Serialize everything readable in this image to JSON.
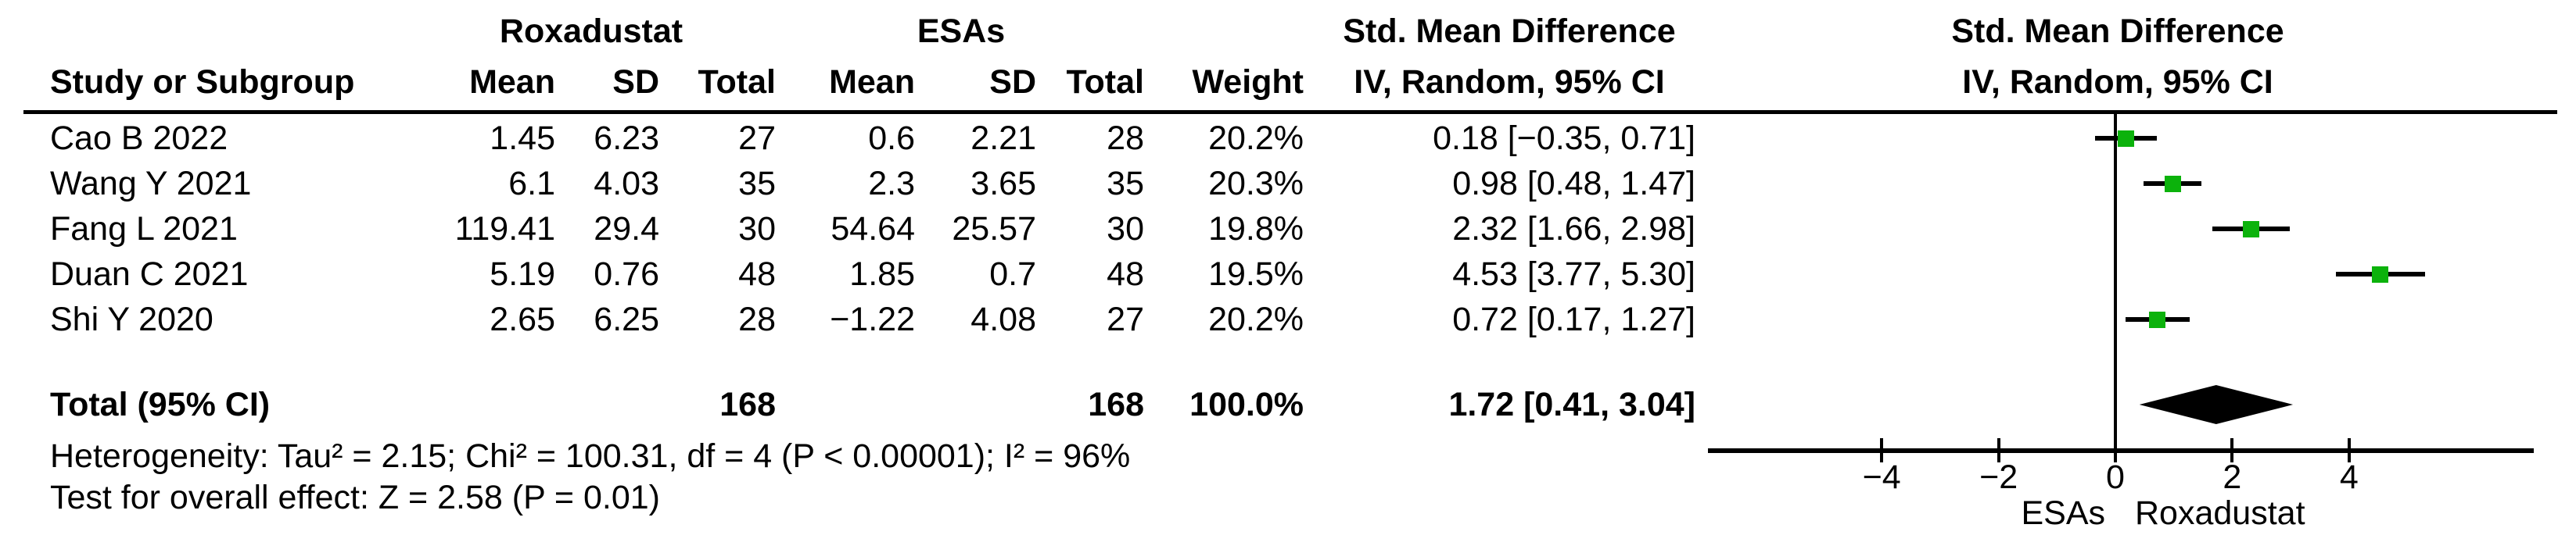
{
  "header": {
    "study_col": "Study or Subgroup",
    "group1": "Roxadustat",
    "group2": "ESAs",
    "mean1": "Mean",
    "sd1": "SD",
    "total1": "Total",
    "mean2": "Mean",
    "sd2": "SD",
    "total2": "Total",
    "weight": "Weight",
    "effect_title": "Std. Mean Difference",
    "effect_method": "IV, Random, 95% CI",
    "plot_title": "Std. Mean Difference",
    "plot_method": "IV, Random, 95% CI"
  },
  "rows": [
    {
      "study": "Cao B 2022",
      "m1": "1.45",
      "sd1": "6.23",
      "n1": "27",
      "m2": "0.6",
      "sd2": "2.21",
      "n2": "28",
      "weight": "20.2%",
      "ci": "0.18 [−0.35, 0.71]"
    },
    {
      "study": "Wang Y 2021",
      "m1": "6.1",
      "sd1": "4.03",
      "n1": "35",
      "m2": "2.3",
      "sd2": "3.65",
      "n2": "35",
      "weight": "20.3%",
      "ci": "0.98 [0.48, 1.47]"
    },
    {
      "study": "Fang L 2021",
      "m1": "119.41",
      "sd1": "29.4",
      "n1": "30",
      "m2": "54.64",
      "sd2": "25.57",
      "n2": "30",
      "weight": "19.8%",
      "ci": "2.32 [1.66, 2.98]"
    },
    {
      "study": "Duan C 2021",
      "m1": "5.19",
      "sd1": "0.76",
      "n1": "48",
      "m2": "1.85",
      "sd2": "0.7",
      "n2": "48",
      "weight": "19.5%",
      "ci": "4.53 [3.77, 5.30]"
    },
    {
      "study": "Shi Y 2020",
      "m1": "2.65",
      "sd1": "6.25",
      "n1": "28",
      "m2": "−1.22",
      "sd2": "4.08",
      "n2": "27",
      "weight": "20.2%",
      "ci": "0.72 [0.17, 1.27]"
    }
  ],
  "totals": {
    "label": "Total (95% CI)",
    "n1": "168",
    "n2": "168",
    "weight": "100.0%",
    "ci": "1.72 [0.41, 3.04]"
  },
  "footnotes": {
    "heterogeneity": "Heterogeneity: Tau² = 2.15; Chi² = 100.31, df = 4 (P < 0.00001); I² = 96%",
    "overall_effect": "Test for overall effect: Z = 2.58 (P = 0.01)"
  },
  "axis": {
    "label_left": "ESAs",
    "label_right": "Roxadustat"
  },
  "colors": {
    "marker_green": "#0cb20c",
    "diamond": "#000000",
    "line": "#000000"
  },
  "chart_data": {
    "type": "forest",
    "title": "Std. Mean Difference, IV, Random, 95% CI — Roxadustat vs ESAs",
    "x_axis": {
      "ticks": [
        -4,
        -2,
        0,
        2,
        4
      ],
      "range": [
        -7,
        7.2
      ],
      "favours_left": "ESAs",
      "favours_right": "Roxadustat"
    },
    "studies": [
      {
        "name": "Cao B 2022",
        "mean1": 1.45,
        "sd1": 6.23,
        "n1": 27,
        "mean2": 0.6,
        "sd2": 2.21,
        "n2": 28,
        "weight_pct": 20.2,
        "smd": 0.18,
        "ci_low": -0.35,
        "ci_high": 0.71
      },
      {
        "name": "Wang Y 2021",
        "mean1": 6.1,
        "sd1": 4.03,
        "n1": 35,
        "mean2": 2.3,
        "sd2": 3.65,
        "n2": 35,
        "weight_pct": 20.3,
        "smd": 0.98,
        "ci_low": 0.48,
        "ci_high": 1.47
      },
      {
        "name": "Fang L 2021",
        "mean1": 119.41,
        "sd1": 29.4,
        "n1": 30,
        "mean2": 54.64,
        "sd2": 25.57,
        "n2": 30,
        "weight_pct": 19.8,
        "smd": 2.32,
        "ci_low": 1.66,
        "ci_high": 2.98
      },
      {
        "name": "Duan C 2021",
        "mean1": 5.19,
        "sd1": 0.76,
        "n1": 48,
        "mean2": 1.85,
        "sd2": 0.7,
        "n2": 48,
        "weight_pct": 19.5,
        "smd": 4.53,
        "ci_low": 3.77,
        "ci_high": 5.3
      },
      {
        "name": "Shi Y 2020",
        "mean1": 2.65,
        "sd1": 6.25,
        "n1": 28,
        "mean2": -1.22,
        "sd2": 4.08,
        "n2": 27,
        "weight_pct": 20.2,
        "smd": 0.72,
        "ci_low": 0.17,
        "ci_high": 1.27
      }
    ],
    "total": {
      "n1": 168,
      "n2": 168,
      "weight_pct": 100.0,
      "smd": 1.72,
      "ci_low": 0.41,
      "ci_high": 3.04
    },
    "heterogeneity": {
      "tau2": 2.15,
      "chi2": 100.31,
      "df": 4,
      "p": "< 0.00001",
      "i2_pct": 96
    },
    "overall_effect": {
      "z": 2.58,
      "p": 0.01
    }
  }
}
